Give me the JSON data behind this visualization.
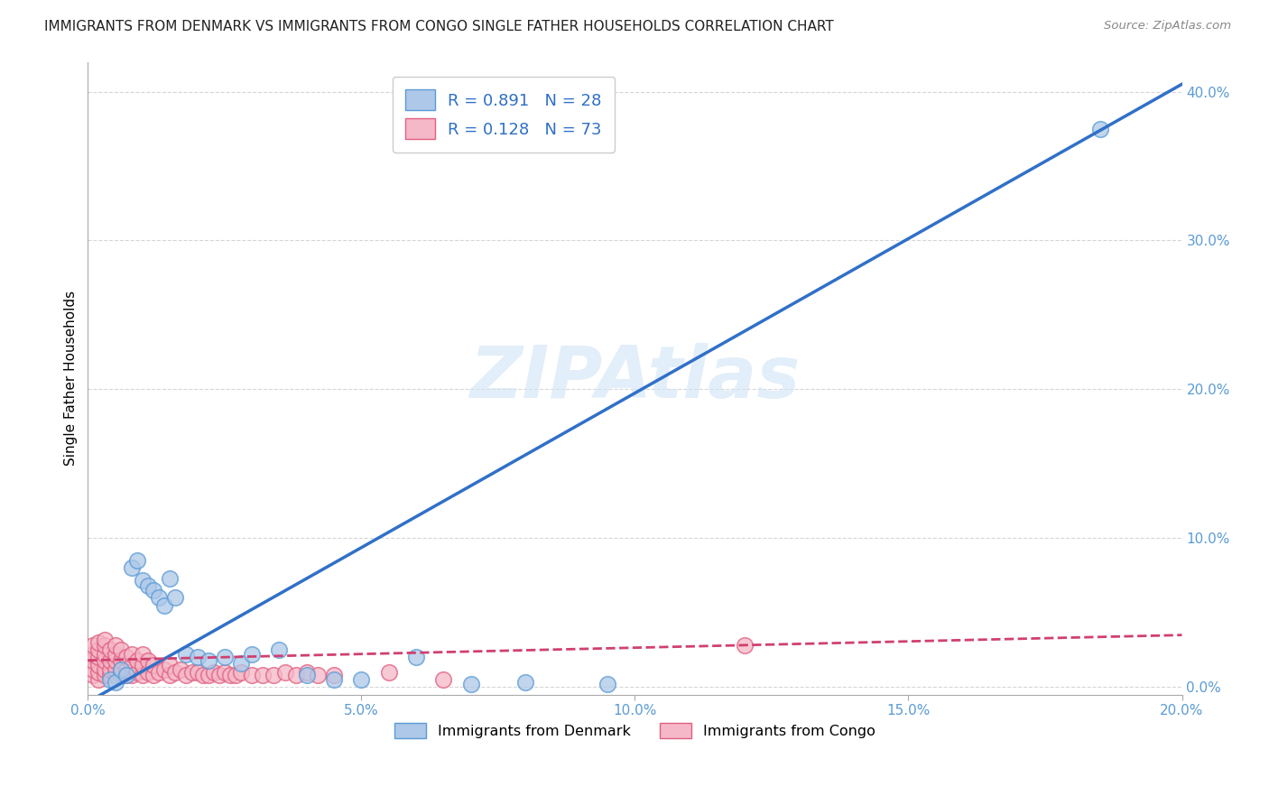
{
  "title": "IMMIGRANTS FROM DENMARK VS IMMIGRANTS FROM CONGO SINGLE FATHER HOUSEHOLDS CORRELATION CHART",
  "source": "Source: ZipAtlas.com",
  "ylabel": "Single Father Households",
  "watermark": "ZIPAtlas",
  "xlim": [
    0.0,
    0.2
  ],
  "ylim": [
    -0.005,
    0.42
  ],
  "xticks": [
    0.0,
    0.05,
    0.1,
    0.15,
    0.2
  ],
  "yticks": [
    0.0,
    0.1,
    0.2,
    0.3,
    0.4
  ],
  "denmark_R": 0.891,
  "denmark_N": 28,
  "congo_R": 0.128,
  "congo_N": 73,
  "denmark_color": "#adc8e8",
  "denmark_edge_color": "#5b9bd5",
  "congo_color": "#f5b8c8",
  "congo_edge_color": "#e06080",
  "denmark_line_color": "#3070c8",
  "congo_line_color": "#d04070",
  "background_color": "#ffffff",
  "grid_color": "#cccccc",
  "denmark_line_x0": 0.0,
  "denmark_line_y0": -0.01,
  "denmark_line_x1": 0.2,
  "denmark_line_y1": 0.405,
  "congo_line_x0": 0.0,
  "congo_line_y0": 0.018,
  "congo_line_x1": 0.2,
  "congo_line_y1": 0.035,
  "denmark_scatter_x": [
    0.004,
    0.005,
    0.006,
    0.007,
    0.008,
    0.009,
    0.01,
    0.011,
    0.012,
    0.013,
    0.014,
    0.015,
    0.016,
    0.018,
    0.02,
    0.022,
    0.025,
    0.028,
    0.03,
    0.035,
    0.04,
    0.045,
    0.05,
    0.06,
    0.07,
    0.08,
    0.095,
    0.185
  ],
  "denmark_scatter_y": [
    0.005,
    0.003,
    0.012,
    0.008,
    0.08,
    0.085,
    0.072,
    0.068,
    0.065,
    0.06,
    0.055,
    0.073,
    0.06,
    0.022,
    0.02,
    0.018,
    0.02,
    0.016,
    0.022,
    0.025,
    0.008,
    0.005,
    0.005,
    0.02,
    0.002,
    0.003,
    0.002,
    0.375
  ],
  "congo_scatter_x": [
    0.001,
    0.001,
    0.001,
    0.001,
    0.001,
    0.002,
    0.002,
    0.002,
    0.002,
    0.002,
    0.002,
    0.003,
    0.003,
    0.003,
    0.003,
    0.003,
    0.003,
    0.004,
    0.004,
    0.004,
    0.004,
    0.005,
    0.005,
    0.005,
    0.005,
    0.005,
    0.006,
    0.006,
    0.006,
    0.006,
    0.007,
    0.007,
    0.007,
    0.008,
    0.008,
    0.008,
    0.009,
    0.009,
    0.01,
    0.01,
    0.01,
    0.011,
    0.011,
    0.012,
    0.012,
    0.013,
    0.014,
    0.015,
    0.015,
    0.016,
    0.017,
    0.018,
    0.019,
    0.02,
    0.021,
    0.022,
    0.023,
    0.024,
    0.025,
    0.026,
    0.027,
    0.028,
    0.03,
    0.032,
    0.034,
    0.036,
    0.038,
    0.04,
    0.042,
    0.045,
    0.055,
    0.065,
    0.12
  ],
  "congo_scatter_y": [
    0.008,
    0.012,
    0.018,
    0.022,
    0.028,
    0.005,
    0.01,
    0.015,
    0.02,
    0.025,
    0.03,
    0.008,
    0.012,
    0.018,
    0.022,
    0.028,
    0.032,
    0.008,
    0.012,
    0.018,
    0.025,
    0.008,
    0.012,
    0.018,
    0.022,
    0.028,
    0.008,
    0.012,
    0.018,
    0.025,
    0.008,
    0.012,
    0.02,
    0.008,
    0.015,
    0.022,
    0.01,
    0.018,
    0.008,
    0.015,
    0.022,
    0.01,
    0.018,
    0.008,
    0.015,
    0.01,
    0.012,
    0.008,
    0.015,
    0.01,
    0.012,
    0.008,
    0.01,
    0.01,
    0.008,
    0.008,
    0.01,
    0.008,
    0.01,
    0.008,
    0.008,
    0.01,
    0.008,
    0.008,
    0.008,
    0.01,
    0.008,
    0.01,
    0.008,
    0.008,
    0.01,
    0.005,
    0.028
  ],
  "legend_labels": [
    "Immigrants from Denmark",
    "Immigrants from Congo"
  ],
  "title_color": "#222222",
  "tick_label_color": "#5b9bd5"
}
